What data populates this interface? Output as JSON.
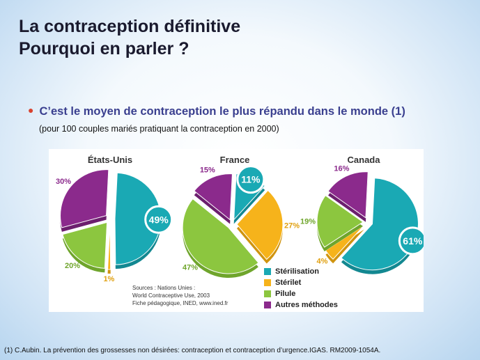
{
  "slide": {
    "title_line1": "La contraception définitive",
    "title_line2": "Pourquoi en parler ?",
    "bullet": "C’est le moyen de contraception le plus répandu dans le monde (1)",
    "subnote": "(pour 100 couples mariés pratiquant la contraception en 2000)",
    "footnote": "(1) C.Aubin. La prévention des grossesses non désirées: contraception et contraception d’urgence.IGAS. RM2009-1054A.",
    "bullet_color": "#d8432f",
    "bullet_icon": "bullet-dot"
  },
  "sources": {
    "line1": "Sources : Nations Unies :",
    "line2": "World Contraceptive Use, 2003",
    "line3": "Fiche pédagogique, INED, www.ined.fr"
  },
  "legend": [
    {
      "label": "Stérilisation",
      "color": "#1aa9b4"
    },
    {
      "label": "Stérilet",
      "color": "#f6b31b"
    },
    {
      "label": "Pilule",
      "color": "#8cc63f"
    },
    {
      "label": "Autres méthodes",
      "color": "#8b2a8c"
    }
  ],
  "chart_data": [
    {
      "type": "pie",
      "title": "États-Unis",
      "categories": [
        "Stérilisation",
        "Stérilet",
        "Pilule",
        "Autres méthodes"
      ],
      "values": [
        49,
        1,
        20,
        30
      ],
      "labels": [
        "49%",
        "1%",
        "20%",
        "30%"
      ],
      "exploded": "all"
    },
    {
      "type": "pie",
      "title": "France",
      "categories": [
        "Stérilisation",
        "Stérilet",
        "Pilule",
        "Autres méthodes"
      ],
      "values": [
        11,
        27,
        47,
        15
      ],
      "labels": [
        "11%",
        "27%",
        "47%",
        "15%"
      ],
      "exploded": "all"
    },
    {
      "type": "pie",
      "title": "Canada",
      "categories": [
        "Stérilisation",
        "Stérilet",
        "Pilule",
        "Autres méthodes"
      ],
      "values": [
        61,
        4,
        19,
        16
      ],
      "labels": [
        "61%",
        "4%",
        "19%",
        "16%"
      ],
      "exploded": "all"
    }
  ]
}
